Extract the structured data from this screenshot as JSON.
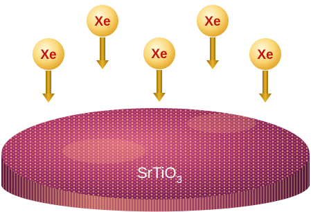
{
  "atoms": [
    "Xe",
    "Xe",
    "Xe",
    "Xe",
    "Xe"
  ],
  "substrate": {
    "label": "SrTiO",
    "subscript": "3"
  }
}
